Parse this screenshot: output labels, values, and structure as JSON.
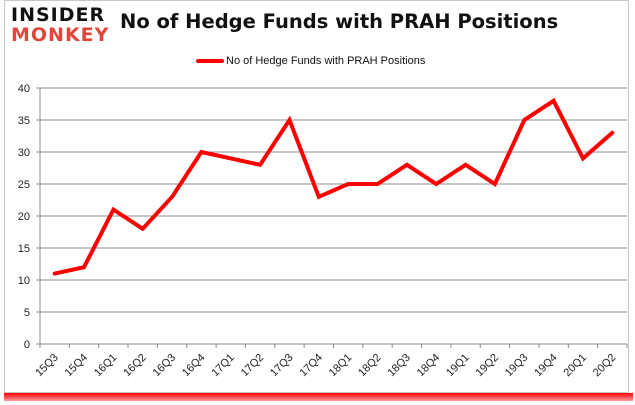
{
  "logo": {
    "line1": "INSIDER",
    "line2": "MONKEY"
  },
  "header": {
    "title": "No of Hedge Funds with PRAH Positions"
  },
  "legend": {
    "label": "No of Hedge Funds with PRAH Positions",
    "color": "#ff0000"
  },
  "chart_data": {
    "type": "line",
    "title": "No of Hedge Funds with PRAH Positions",
    "xlabel": "",
    "ylabel": "",
    "ylim": [
      0,
      40
    ],
    "yticks": [
      0,
      5,
      10,
      15,
      20,
      25,
      30,
      35,
      40
    ],
    "grid": true,
    "legend_position": "top",
    "categories": [
      "15Q3",
      "15Q4",
      "16Q1",
      "16Q2",
      "16Q3",
      "16Q4",
      "17Q1",
      "17Q2",
      "17Q3",
      "17Q4",
      "18Q1",
      "18Q2",
      "18Q3",
      "18Q4",
      "19Q1",
      "19Q2",
      "19Q3",
      "19Q4",
      "20Q1",
      "20Q2"
    ],
    "series": [
      {
        "name": "No of Hedge Funds with PRAH Positions",
        "color": "#ff0000",
        "values": [
          11,
          12,
          21,
          18,
          23,
          30,
          29,
          28,
          35,
          23,
          25,
          25,
          28,
          25,
          28,
          25,
          35,
          38,
          29,
          33
        ]
      }
    ]
  }
}
